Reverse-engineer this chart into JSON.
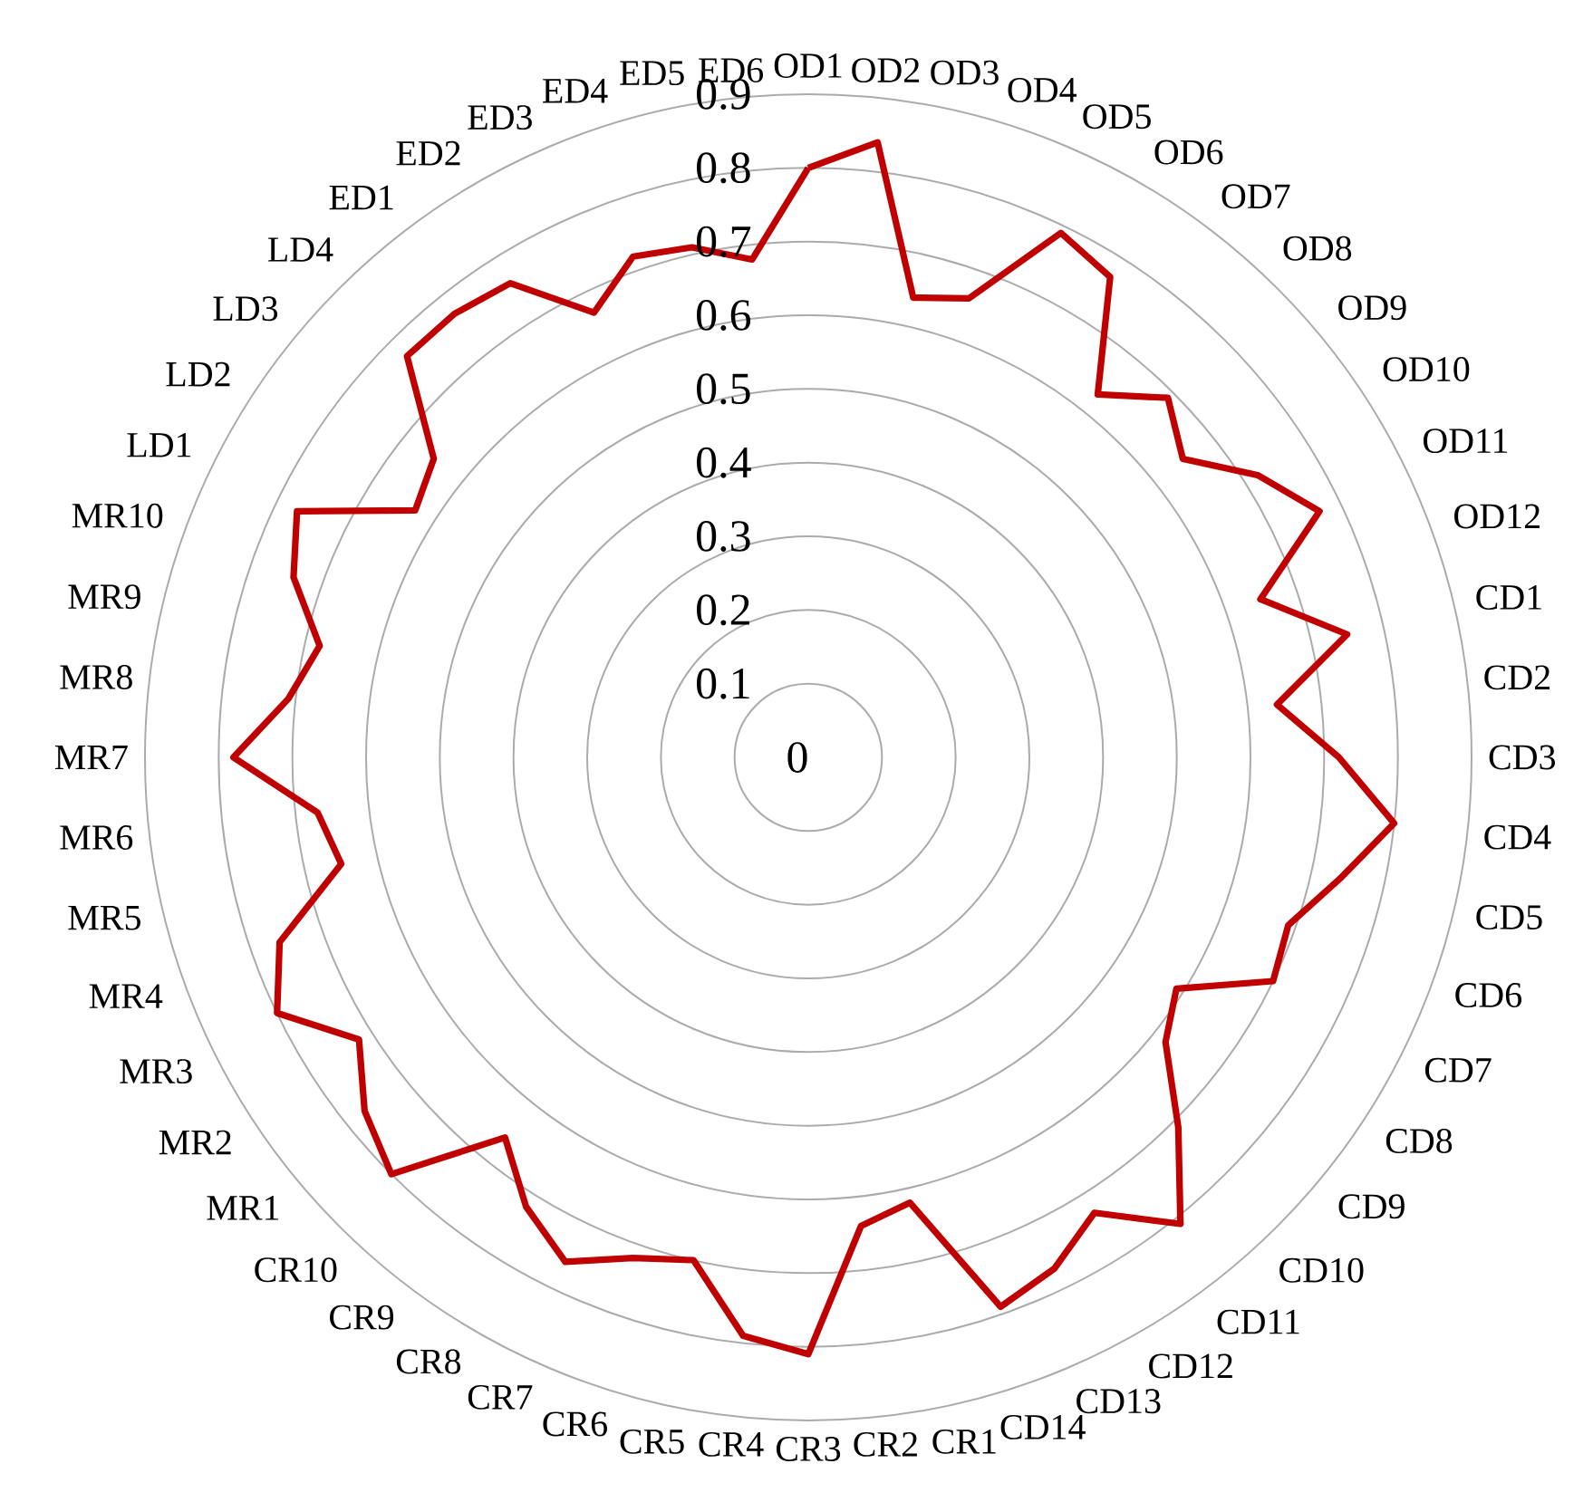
{
  "chart_data": {
    "type": "radar",
    "categories": [
      "OD1",
      "OD2",
      "OD3",
      "OD4",
      "OD5",
      "OD6",
      "OD7",
      "OD8",
      "OD9",
      "OD10",
      "OD11",
      "OD12",
      "CD1",
      "CD2",
      "CD3",
      "CD4",
      "CD5",
      "CD6",
      "CD7",
      "CD8",
      "CD9",
      "CD10",
      "CD11",
      "CD12",
      "CD13",
      "CD14",
      "CR1",
      "CR2",
      "CR3",
      "CR4",
      "CR5",
      "CR6",
      "CR7",
      "CR8",
      "CR9",
      "CR10",
      "MR1",
      "MR2",
      "MR3",
      "MR4",
      "MR5",
      "MR6",
      "MR7",
      "MR8",
      "MR9",
      "MR10",
      "LD1",
      "LD2",
      "LD3",
      "LD4",
      "ED1",
      "ED2",
      "ED3",
      "ED4",
      "ED5",
      "ED6"
    ],
    "series": [
      {
        "color": "#c00000",
        "values": [
          0.8,
          0.84,
          0.64,
          0.66,
          0.79,
          0.77,
          0.63,
          0.69,
          0.65,
          0.72,
          0.77,
          0.65,
          0.75,
          0.64,
          0.72,
          0.8,
          0.74,
          0.69,
          0.7,
          0.59,
          0.62,
          0.71,
          0.81,
          0.73,
          0.77,
          0.79,
          0.62,
          0.64,
          0.81,
          0.79,
          0.7,
          0.72,
          0.76,
          0.72,
          0.66,
          0.8,
          0.77,
          0.72,
          0.8,
          0.76,
          0.65,
          0.67,
          0.78,
          0.71,
          0.68,
          0.74,
          0.77,
          0.63,
          0.65,
          0.77,
          0.77,
          0.76,
          0.67,
          0.72,
          0.71,
          0.68
        ]
      }
    ],
    "ylim": [
      0,
      0.9
    ],
    "yticks": [
      0,
      0.1,
      0.2,
      0.3,
      0.4,
      0.5,
      0.6,
      0.7,
      0.8,
      0.9
    ],
    "grid": true
  }
}
